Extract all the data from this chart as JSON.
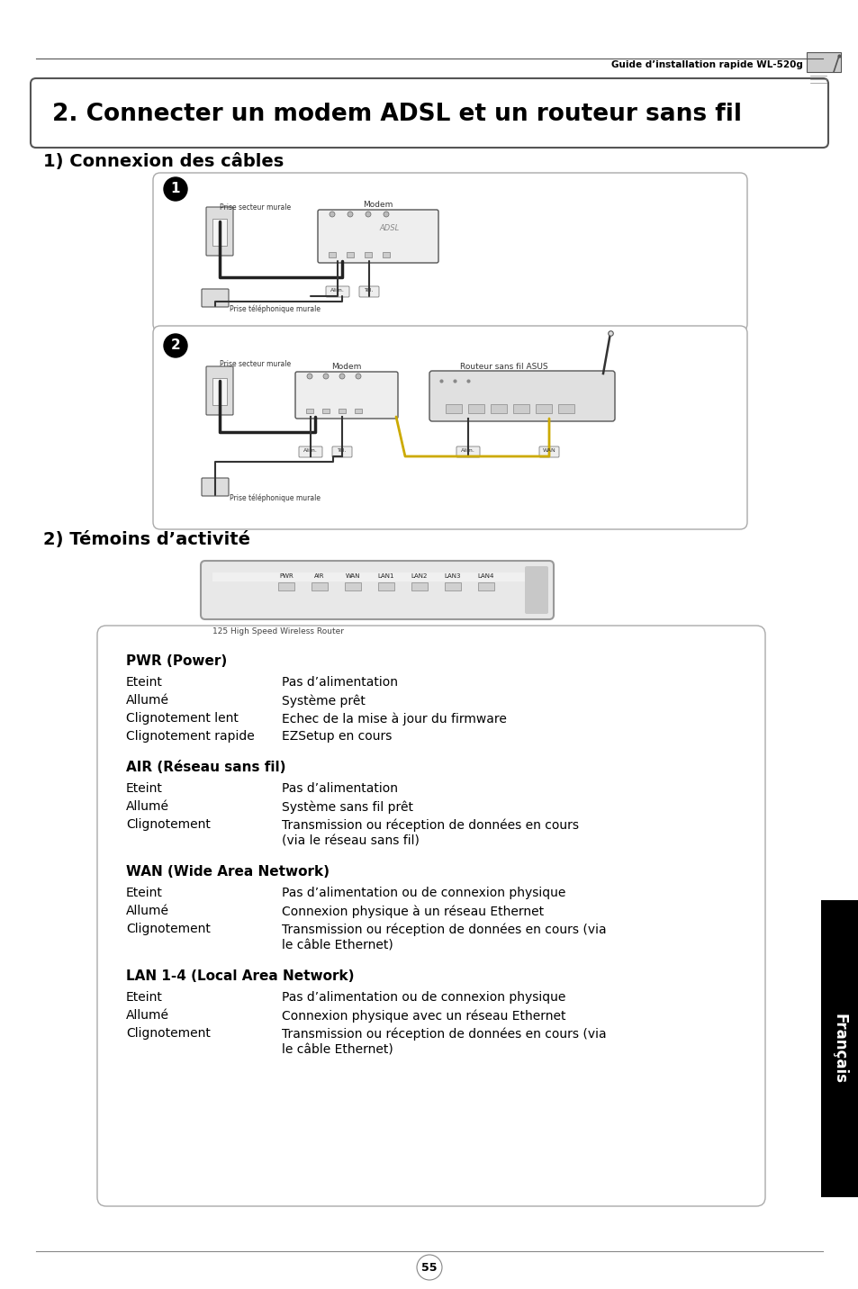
{
  "page_bg": "#ffffff",
  "header_text": "Guide d’installation rapide WL-520g",
  "title_box_text": "2. Connecter un modem ADSL et un routeur sans fil",
  "section1_title": "1) Connexion des câbles",
  "section2_title": "2) Témoins d’activité",
  "tab_text": "Français",
  "tab_bg": "#000000",
  "tab_text_color": "#ffffff",
  "page_number": "55",
  "pwr_title": "PWR (Power)",
  "pwr_rows": [
    [
      "Eteint",
      "Pas d’alimentation"
    ],
    [
      "Allumé",
      "Système prêt"
    ],
    [
      "Clignotement lent",
      "Echec de la mise à jour du firmware"
    ],
    [
      "Clignotement rapide",
      "EZSetup en cours"
    ]
  ],
  "air_title": "AIR (Réseau sans fil)",
  "air_rows": [
    [
      "Eteint",
      "Pas d’alimentation"
    ],
    [
      "Allumé",
      "Système sans fil prêt"
    ],
    [
      "Clignotement",
      "Transmission ou réception de données en cours\n(via le réseau sans fil)"
    ]
  ],
  "wan_title": "WAN (Wide Area Network)",
  "wan_rows": [
    [
      "Eteint",
      "Pas d’alimentation ou de connexion physique"
    ],
    [
      "Allumé",
      "Connexion physique à un réseau Ethernet"
    ],
    [
      "Clignotement",
      "Transmission ou réception de données en cours (via\nle câble Ethernet)"
    ]
  ],
  "lan_title": "LAN 1-4 (Local Area Network)",
  "lan_rows": [
    [
      "Eteint",
      "Pas d’alimentation ou de connexion physique"
    ],
    [
      "Allumé",
      "Connexion physique avec un réseau Ethernet"
    ],
    [
      "Clignotement",
      "Transmission ou réception de données en cours (via\nle câble Ethernet)"
    ]
  ],
  "router_labels": [
    "PWR",
    "AIR",
    "WAN",
    "LAN1",
    "LAN2",
    "LAN3",
    "LAN4"
  ],
  "router_caption": "125 High Speed Wireless Router",
  "diag1_label_top": "Prise secteur murale",
  "diag1_label_mid": "Modem",
  "diag1_label_bot": "Prise téléphonique murale",
  "diag2_label_top": "Prise secteur murale",
  "diag2_label_mid1": "Modem",
  "diag2_label_mid2": "Routeur sans fil ASUS",
  "diag2_label_bot": "Prise téléphonique murale"
}
